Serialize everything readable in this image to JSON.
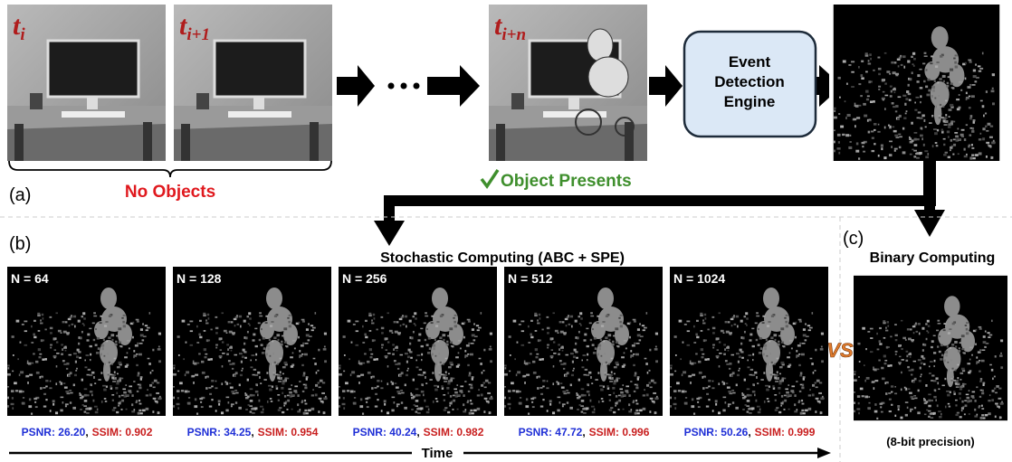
{
  "frames": [
    {
      "base": "t",
      "sub": "i"
    },
    {
      "base": "t",
      "sub": "i+1"
    },
    {
      "base": "t",
      "sub": "i+n"
    }
  ],
  "no_objects": "No Objects",
  "object_presents": "Object Presents",
  "engine": [
    "Event",
    "Detection",
    "Engine"
  ],
  "panel_labels": {
    "a": "(a)",
    "b": "(b)",
    "c": "(c)"
  },
  "stochastic": {
    "title": "Stochastic Computing (ABC + SPE)",
    "separator": ",",
    "results": [
      {
        "n": "N = 64",
        "psnr": "PSNR: 26.20",
        "ssim": "SSIM: 0.902"
      },
      {
        "n": "N = 128",
        "psnr": "PSNR: 34.25",
        "ssim": "SSIM: 0.954"
      },
      {
        "n": "N = 256",
        "psnr": "PSNR: 40.24",
        "ssim": "SSIM: 0.982"
      },
      {
        "n": "N = 512",
        "psnr": "PSNR: 47.72",
        "ssim": "SSIM: 0.996"
      },
      {
        "n": "N = 1024",
        "psnr": "PSNR: 50.26",
        "ssim": "SSIM: 0.999"
      }
    ]
  },
  "vs": "VS",
  "binary": {
    "title": "Binary Computing",
    "note": "(8-bit precision)"
  },
  "time": "Time"
}
